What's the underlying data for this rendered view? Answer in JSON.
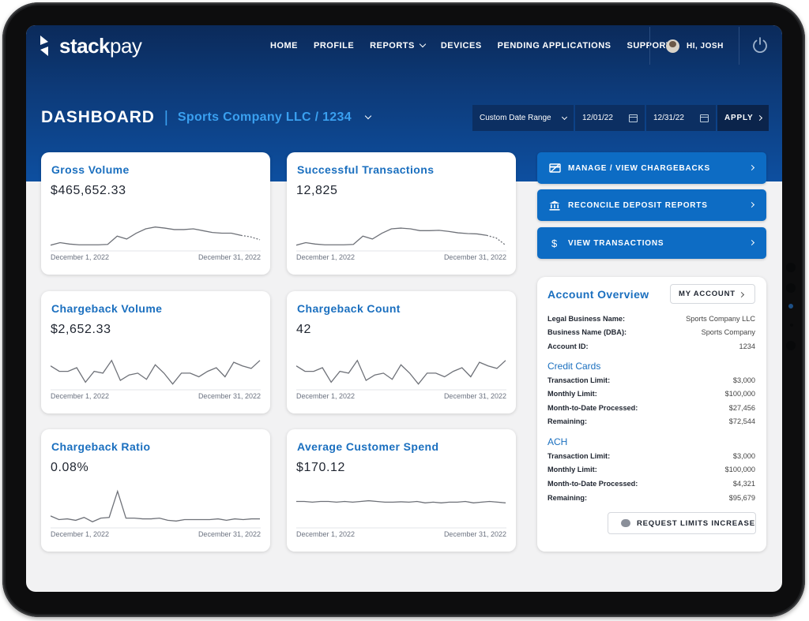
{
  "brand": {
    "name_bold": "stack",
    "name_light": "pay",
    "accent": "#1a6fbf"
  },
  "nav": {
    "items": [
      {
        "label": "HOME"
      },
      {
        "label": "PROFILE"
      },
      {
        "label": "REPORTS"
      },
      {
        "label": "DEVICES"
      },
      {
        "label": "PENDING APPLICATIONS"
      },
      {
        "label": "SUPPORT"
      }
    ],
    "user_greeting": "HI, JOSH"
  },
  "header": {
    "title": "DASHBOARD",
    "divider": "|",
    "company": "Sports Company LLC / 1234",
    "date_range_select": "Custom Date Range",
    "start_date": "12/01/22",
    "end_date": "12/31/22",
    "apply_label": "APPLY"
  },
  "kpis": [
    {
      "title": "Gross Volume",
      "value": "$465,652.33",
      "start": "December 1, 2022",
      "end": "December 31, 2022"
    },
    {
      "title": "Successful Transactions",
      "value": "12,825",
      "start": "December 1, 2022",
      "end": "December 31, 2022"
    },
    {
      "title": "Chargeback Volume",
      "value": "$2,652.33",
      "start": "December 1, 2022",
      "end": "December 31, 2022"
    },
    {
      "title": "Chargeback Count",
      "value": "42",
      "start": "December 1, 2022",
      "end": "December 31, 2022"
    },
    {
      "title": "Chargeback Ratio",
      "value": "0.08%",
      "start": "December 1, 2022",
      "end": "December 31, 2022"
    },
    {
      "title": "Average Customer Spend",
      "value": "$170.12",
      "start": "December 1, 2022",
      "end": "December 31, 2022"
    }
  ],
  "quick_actions": [
    {
      "label": "MANAGE / VIEW CHARGEBACKS",
      "icon": "chargeback-icon"
    },
    {
      "label": "RECONCILE DEPOSIT REPORTS",
      "icon": "bank-icon"
    },
    {
      "label": "VIEW TRANSACTIONS",
      "icon": "dollar-icon"
    }
  ],
  "account": {
    "title": "Account Overview",
    "my_account_label": "MY ACCOUNT",
    "legal_name_label": "Legal Business Name:",
    "legal_name": "Sports Company LLC",
    "dba_label": "Business Name (DBA):",
    "dba": "Sports Company",
    "account_id_label": "Account ID:",
    "account_id": "1234",
    "credit_cards": {
      "title": "Credit Cards",
      "rows": [
        {
          "label": "Transaction Limit:",
          "value": "$3,000"
        },
        {
          "label": "Monthly Limit:",
          "value": "$100,000"
        },
        {
          "label": "Month-to-Date Processed:",
          "value": "$27,456"
        },
        {
          "label": "Remaining:",
          "value": "$72,544"
        }
      ]
    },
    "ach": {
      "title": "ACH",
      "rows": [
        {
          "label": "Transaction Limit:",
          "value": "$3,000"
        },
        {
          "label": "Monthly Limit:",
          "value": "$100,000"
        },
        {
          "label": "Month-to-Date Processed:",
          "value": "$4,321"
        },
        {
          "label": "Remaining:",
          "value": "$95,679"
        }
      ]
    },
    "request_label": "REQUEST LIMITS INCREASE"
  },
  "sparklines": [
    {
      "values": [
        0.05,
        0.12,
        0.08,
        0.06,
        0.06,
        0.06,
        0.07,
        0.3,
        0.22,
        0.38,
        0.5,
        0.55,
        0.52,
        0.48,
        0.48,
        0.5,
        0.45,
        0.4,
        0.38,
        0.38,
        0.32,
        0.28,
        0.2
      ],
      "dashed_from": 20
    },
    {
      "values": [
        0.05,
        0.12,
        0.08,
        0.06,
        0.06,
        0.06,
        0.07,
        0.3,
        0.22,
        0.38,
        0.5,
        0.52,
        0.5,
        0.45,
        0.45,
        0.46,
        0.43,
        0.39,
        0.37,
        0.36,
        0.32,
        0.25,
        0.05
      ],
      "dashed_from": 20
    },
    {
      "values": [
        0.55,
        0.4,
        0.4,
        0.5,
        0.1,
        0.4,
        0.35,
        0.7,
        0.15,
        0.3,
        0.35,
        0.18,
        0.58,
        0.35,
        0.05,
        0.35,
        0.35,
        0.25,
        0.4,
        0.5,
        0.25,
        0.65,
        0.55,
        0.48,
        0.7
      ],
      "dashed_from": null
    },
    {
      "values": [
        0.55,
        0.4,
        0.4,
        0.5,
        0.1,
        0.4,
        0.35,
        0.7,
        0.15,
        0.3,
        0.35,
        0.18,
        0.58,
        0.35,
        0.05,
        0.35,
        0.35,
        0.25,
        0.4,
        0.5,
        0.25,
        0.65,
        0.55,
        0.48,
        0.7
      ],
      "dashed_from": null
    },
    {
      "values": [
        0.22,
        0.12,
        0.14,
        0.1,
        0.18,
        0.06,
        0.16,
        0.18,
        0.9,
        0.16,
        0.16,
        0.14,
        0.14,
        0.16,
        0.1,
        0.08,
        0.12,
        0.12,
        0.12,
        0.12,
        0.14,
        0.1,
        0.14,
        0.12,
        0.14,
        0.14
      ],
      "dashed_from": null
    },
    {
      "values": [
        0.62,
        0.62,
        0.6,
        0.62,
        0.62,
        0.6,
        0.62,
        0.6,
        0.62,
        0.64,
        0.62,
        0.6,
        0.6,
        0.61,
        0.6,
        0.62,
        0.58,
        0.6,
        0.58,
        0.6,
        0.6,
        0.62,
        0.58,
        0.6,
        0.62,
        0.6,
        0.58
      ],
      "dashed_from": null
    }
  ]
}
